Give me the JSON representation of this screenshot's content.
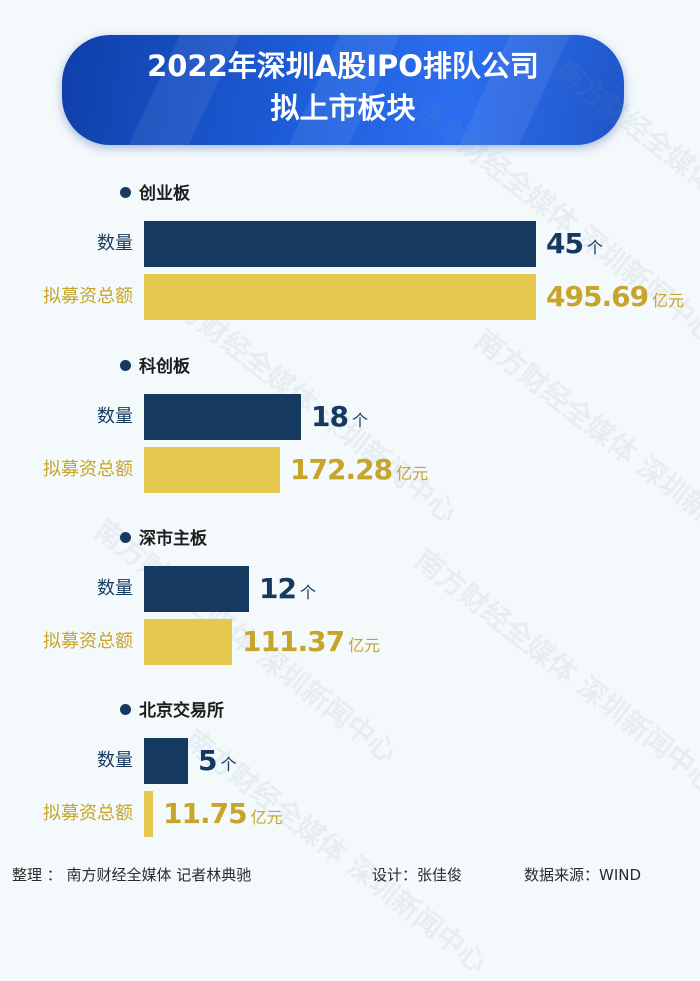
{
  "title_line1": "2022年深圳A股IPO排队公司",
  "title_line2": "拟上市板块",
  "watermark": "南方财经全媒体 深圳新闻中心",
  "chart_data": {
    "type": "bar",
    "orientation": "horizontal",
    "metric_labels": {
      "count": "数量",
      "amount": "拟募资总额"
    },
    "units": {
      "count": "个",
      "amount": "亿元"
    },
    "groups": [
      {
        "name": "创业板",
        "count": 45,
        "amount": 495.69
      },
      {
        "name": "科创板",
        "count": 18,
        "amount": 172.28
      },
      {
        "name": "深市主板",
        "count": 12,
        "amount": 111.37
      },
      {
        "name": "北京交易所",
        "count": 5,
        "amount": 11.75
      }
    ],
    "colors": {
      "count": "#163a5f",
      "amount": "#e5c850"
    }
  },
  "footer": {
    "editor": "整理 ： 南方财经全媒体 记者林典驰",
    "designer": "设计：张佳俊",
    "source": "数据来源：WIND"
  }
}
